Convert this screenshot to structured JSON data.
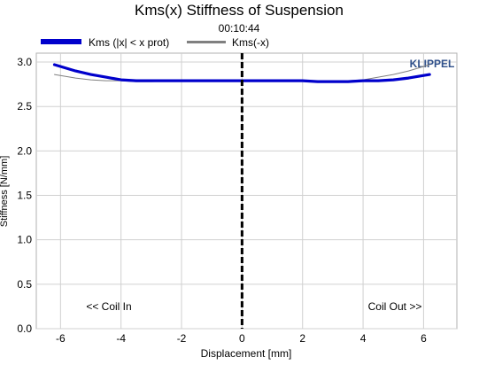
{
  "chart_data": {
    "type": "line",
    "title": "Kms(x) Stiffness of Suspension",
    "subtitle": "00:10:44",
    "xlabel": "Displacement [mm]",
    "ylabel": "Stiffness [N/mm]",
    "xlim": [
      -6.8,
      7.1
    ],
    "ylim": [
      0.0,
      3.1
    ],
    "x_ticks": [
      -6,
      -4,
      -2,
      0,
      2,
      4,
      6
    ],
    "x_tick_labels": [
      "-6",
      "-4",
      "-2",
      "0",
      "2",
      "4",
      "6"
    ],
    "y_ticks": [
      0.0,
      0.5,
      1.0,
      1.5,
      2.0,
      2.5,
      3.0
    ],
    "y_tick_labels": [
      "0.0",
      "0.5",
      "1.0",
      "1.5",
      "2.0",
      "2.5",
      "3.0"
    ],
    "grid": true,
    "legend_position": "top",
    "brand": "KLIPPEL",
    "annotations": {
      "left": "<< Coil In",
      "right": "Coil Out >>"
    },
    "colors": {
      "series1": "#0000cc",
      "series2": "#808080",
      "zero_line": "#000000",
      "grid": "#d0d0d0",
      "brand": "#2e4f8a"
    },
    "series": [
      {
        "name": "Kms (|x| < x prot)",
        "x": [
          -6.2,
          -5.5,
          -5.0,
          -4.5,
          -4.0,
          -3.5,
          -3.0,
          -2.0,
          -1.0,
          0.0,
          1.0,
          2.0,
          2.5,
          3.0,
          3.5,
          4.0,
          4.5,
          5.0,
          5.5,
          6.2
        ],
        "values": [
          2.97,
          2.9,
          2.86,
          2.83,
          2.8,
          2.79,
          2.79,
          2.79,
          2.79,
          2.79,
          2.79,
          2.79,
          2.78,
          2.78,
          2.78,
          2.79,
          2.79,
          2.8,
          2.82,
          2.86
        ]
      },
      {
        "name": "Kms(-x)",
        "x": [
          -6.2,
          -5.5,
          -5.0,
          -4.5,
          -4.0,
          -3.5,
          -3.0,
          -2.0,
          -1.0,
          0.0,
          1.0,
          2.0,
          2.5,
          3.0,
          3.5,
          4.0,
          4.5,
          5.0,
          5.5,
          6.2
        ],
        "values": [
          2.86,
          2.82,
          2.8,
          2.79,
          2.79,
          2.78,
          2.78,
          2.79,
          2.79,
          2.79,
          2.79,
          2.79,
          2.79,
          2.79,
          2.79,
          2.8,
          2.83,
          2.86,
          2.9,
          2.97
        ]
      }
    ]
  }
}
